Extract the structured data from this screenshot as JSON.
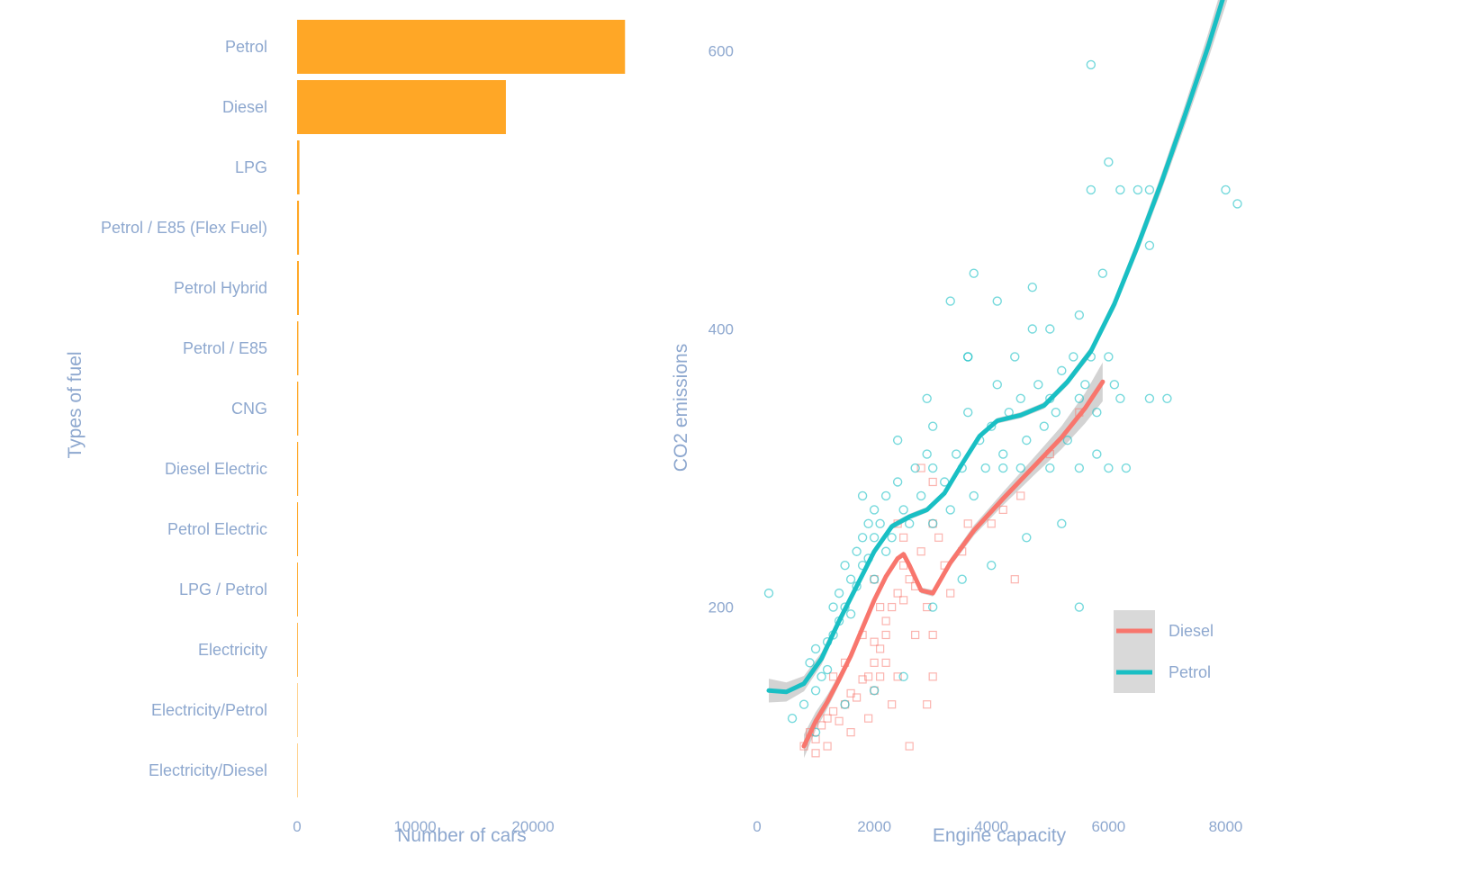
{
  "colors": {
    "bar": "#ffa726",
    "diesel": "#f8766d",
    "petrol": "#19bfc4",
    "text": "#8ea8cf",
    "ribbon": "#c4c4c4"
  },
  "chart_data": [
    {
      "type": "bar",
      "orientation": "horizontal",
      "categories": [
        "Petrol",
        "Diesel",
        "LPG",
        "Petrol / E85 (Flex Fuel)",
        "Petrol Hybrid",
        "Petrol / E85",
        "CNG",
        "Diesel Electric",
        "Petrol Electric",
        "LPG / Petrol",
        "Electricity",
        "Electricity/Petrol",
        "Electricity/Diesel"
      ],
      "values": [
        27800,
        17700,
        200,
        160,
        150,
        110,
        100,
        90,
        80,
        70,
        60,
        20,
        5
      ],
      "xlabel": "Number of cars",
      "ylabel": "Types of fuel",
      "xticks": [
        "0",
        "10000",
        "20000"
      ],
      "xtick_values": [
        0,
        10000,
        20000
      ],
      "xlim": [
        0,
        29000
      ],
      "grid": false
    },
    {
      "type": "scatter",
      "xlabel": "Engine capacity",
      "ylabel": "CO2 emissions",
      "xticks": [
        "0",
        "2000",
        "4000",
        "6000",
        "8000"
      ],
      "xtick_values": [
        0,
        2000,
        4000,
        6000,
        8000
      ],
      "yticks": [
        "200",
        "400",
        "600"
      ],
      "ytick_values": [
        200,
        400,
        600
      ],
      "xlim": [
        0,
        8300
      ],
      "ylim": [
        80,
        610
      ],
      "legend_position": "right",
      "grid": false,
      "series": [
        {
          "name": "Diesel",
          "marker": "square",
          "color": "#f8766d",
          "points": [
            [
              800,
              100
            ],
            [
              900,
              110
            ],
            [
              1000,
              105
            ],
            [
              1100,
              115
            ],
            [
              1200,
              120
            ],
            [
              1300,
              125
            ],
            [
              1400,
              118
            ],
            [
              1500,
              130
            ],
            [
              1600,
              138
            ],
            [
              1700,
              135
            ],
            [
              1800,
              148
            ],
            [
              1900,
              150
            ],
            [
              2000,
              160
            ],
            [
              2000,
              175
            ],
            [
              2100,
              150
            ],
            [
              2100,
              170
            ],
            [
              2200,
              180
            ],
            [
              2200,
              160
            ],
            [
              2300,
              200
            ],
            [
              2400,
              210
            ],
            [
              2500,
              230
            ],
            [
              2500,
              205
            ],
            [
              2600,
              220
            ],
            [
              2700,
              215
            ],
            [
              2800,
              240
            ],
            [
              2900,
              200
            ],
            [
              3000,
              180
            ],
            [
              3000,
              150
            ],
            [
              3000,
              260
            ],
            [
              2000,
              140
            ],
            [
              1900,
              120
            ],
            [
              2200,
              190
            ],
            [
              2400,
              150
            ],
            [
              2700,
              180
            ],
            [
              3200,
              230
            ],
            [
              3500,
              240
            ],
            [
              4000,
              260
            ],
            [
              4200,
              270
            ],
            [
              4500,
              280
            ],
            [
              5000,
              310
            ],
            [
              5500,
              340
            ],
            [
              2300,
              130
            ],
            [
              2600,
              100
            ],
            [
              1600,
              110
            ],
            [
              1200,
              100
            ],
            [
              1000,
              95
            ],
            [
              2100,
              200
            ],
            [
              2500,
              250
            ],
            [
              2800,
              300
            ],
            [
              3000,
              290
            ],
            [
              3600,
              260
            ],
            [
              4400,
              220
            ],
            [
              3300,
              210
            ],
            [
              2900,
              130
            ],
            [
              2000,
              220
            ],
            [
              1800,
              180
            ],
            [
              1500,
              160
            ],
            [
              1300,
              150
            ],
            [
              3100,
              250
            ],
            [
              2400,
              260
            ]
          ]
        },
        {
          "name": "Petrol",
          "marker": "circle",
          "color": "#19bfc4",
          "points": [
            [
              200,
              210
            ],
            [
              600,
              120
            ],
            [
              800,
              130
            ],
            [
              900,
              160
            ],
            [
              1000,
              170
            ],
            [
              1000,
              140
            ],
            [
              1100,
              150
            ],
            [
              1200,
              175
            ],
            [
              1200,
              155
            ],
            [
              1300,
              180
            ],
            [
              1300,
              200
            ],
            [
              1400,
              190
            ],
            [
              1400,
              210
            ],
            [
              1500,
              200
            ],
            [
              1500,
              230
            ],
            [
              1600,
              220
            ],
            [
              1600,
              195
            ],
            [
              1700,
              240
            ],
            [
              1700,
              215
            ],
            [
              1800,
              230
            ],
            [
              1800,
              250
            ],
            [
              1900,
              260
            ],
            [
              1900,
              235
            ],
            [
              2000,
              250
            ],
            [
              2000,
              270
            ],
            [
              2000,
              220
            ],
            [
              2100,
              260
            ],
            [
              2200,
              240
            ],
            [
              2200,
              280
            ],
            [
              2300,
              250
            ],
            [
              2400,
              290
            ],
            [
              2500,
              270
            ],
            [
              2600,
              260
            ],
            [
              2700,
              300
            ],
            [
              2800,
              280
            ],
            [
              2900,
              310
            ],
            [
              3000,
              260
            ],
            [
              3000,
              300
            ],
            [
              3000,
              330
            ],
            [
              3200,
              290
            ],
            [
              3300,
              270
            ],
            [
              3400,
              310
            ],
            [
              3500,
              300
            ],
            [
              3600,
              340
            ],
            [
              3600,
              380
            ],
            [
              3700,
              280
            ],
            [
              3800,
              320
            ],
            [
              3900,
              300
            ],
            [
              4000,
              330
            ],
            [
              4100,
              360
            ],
            [
              4200,
              310
            ],
            [
              4300,
              340
            ],
            [
              4400,
              380
            ],
            [
              4500,
              300
            ],
            [
              4500,
              350
            ],
            [
              4600,
              320
            ],
            [
              4700,
              400
            ],
            [
              4800,
              360
            ],
            [
              4900,
              330
            ],
            [
              5000,
              300
            ],
            [
              5000,
              350
            ],
            [
              5000,
              400
            ],
            [
              5100,
              340
            ],
            [
              5200,
              370
            ],
            [
              5300,
              320
            ],
            [
              5400,
              380
            ],
            [
              5500,
              300
            ],
            [
              5500,
              410
            ],
            [
              5500,
              350
            ],
            [
              5600,
              360
            ],
            [
              5700,
              500
            ],
            [
              5700,
              380
            ],
            [
              5700,
              590
            ],
            [
              5800,
              340
            ],
            [
              5900,
              440
            ],
            [
              6000,
              380
            ],
            [
              6000,
              520
            ],
            [
              6000,
              300
            ],
            [
              6100,
              360
            ],
            [
              6200,
              500
            ],
            [
              6200,
              350
            ],
            [
              6500,
              500
            ],
            [
              6700,
              500
            ],
            [
              6700,
              350
            ],
            [
              6700,
              460
            ],
            [
              7000,
              350
            ],
            [
              8000,
              500
            ],
            [
              8200,
              490
            ],
            [
              4600,
              250
            ],
            [
              4000,
              230
            ],
            [
              3500,
              220
            ],
            [
              3000,
              200
            ],
            [
              2500,
              150
            ],
            [
              2000,
              140
            ],
            [
              1500,
              130
            ],
            [
              1000,
              110
            ],
            [
              5500,
              200
            ],
            [
              4700,
              430
            ],
            [
              4200,
              300
            ],
            [
              3700,
              440
            ],
            [
              5200,
              260
            ],
            [
              5800,
              310
            ],
            [
              6300,
              300
            ],
            [
              3300,
              420
            ],
            [
              1800,
              280
            ],
            [
              2400,
              320
            ],
            [
              2900,
              350
            ],
            [
              3600,
              380
            ],
            [
              4100,
              420
            ]
          ]
        }
      ],
      "smooth_lines": [
        {
          "name": "Diesel",
          "points": [
            [
              800,
              100
            ],
            [
              1000,
              118
            ],
            [
              1200,
              132
            ],
            [
              1400,
              148
            ],
            [
              1600,
              165
            ],
            [
              1800,
              185
            ],
            [
              2000,
              205
            ],
            [
              2200,
              222
            ],
            [
              2400,
              235
            ],
            [
              2500,
              238
            ],
            [
              2600,
              230
            ],
            [
              2800,
              212
            ],
            [
              3000,
              210
            ],
            [
              3300,
              232
            ],
            [
              3700,
              255
            ],
            [
              4200,
              278
            ],
            [
              4700,
              300
            ],
            [
              5200,
              322
            ],
            [
              5600,
              343
            ],
            [
              5900,
              362
            ]
          ]
        },
        {
          "name": "Petrol",
          "points": [
            [
              200,
              140
            ],
            [
              500,
              139
            ],
            [
              800,
              145
            ],
            [
              1100,
              163
            ],
            [
              1400,
              190
            ],
            [
              1700,
              215
            ],
            [
              2000,
              240
            ],
            [
              2300,
              258
            ],
            [
              2600,
              265
            ],
            [
              2900,
              270
            ],
            [
              3200,
              282
            ],
            [
              3500,
              303
            ],
            [
              3800,
              323
            ],
            [
              4100,
              334
            ],
            [
              4500,
              338
            ],
            [
              4900,
              345
            ],
            [
              5300,
              362
            ],
            [
              5700,
              384
            ],
            [
              6100,
              418
            ],
            [
              6500,
              460
            ],
            [
              6900,
              505
            ],
            [
              7300,
              553
            ],
            [
              7700,
              603
            ],
            [
              8000,
              644
            ],
            [
              8250,
              681
            ]
          ]
        }
      ]
    }
  ]
}
